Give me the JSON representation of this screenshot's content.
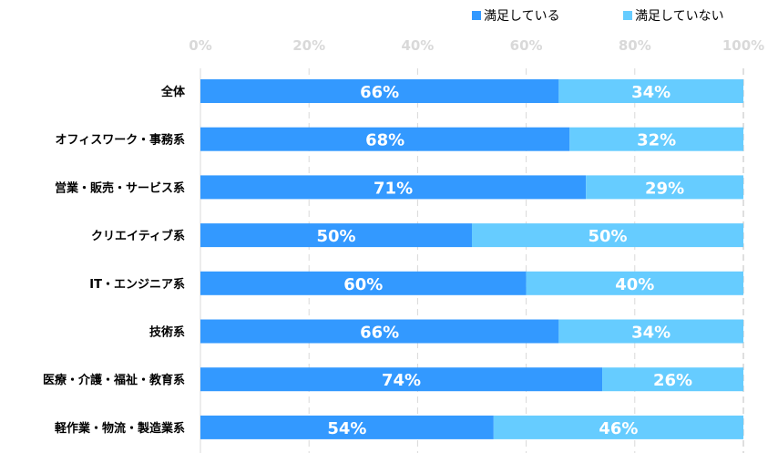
{
  "chart_data": {
    "type": "bar",
    "orientation": "horizontal",
    "stacked": true,
    "categories": [
      "全体",
      "オフィスワーク・事務系",
      "営業・販売・サービス系",
      "クリエイティブ系",
      "IT・エンジニア系",
      "技術系",
      "医療・介護・福祉・教育系",
      "軽作業・物流・製造業系"
    ],
    "series": [
      {
        "name": "満足している",
        "color": "#3399FF",
        "values": [
          66,
          68,
          71,
          50,
          60,
          66,
          74,
          54
        ]
      },
      {
        "name": "満足していない",
        "color": "#66CCFF",
        "values": [
          34,
          32,
          29,
          50,
          40,
          34,
          26,
          46
        ]
      }
    ],
    "xlim": [
      0,
      100
    ],
    "xticks": [
      "0%",
      "20%",
      "40%",
      "60%",
      "80%",
      "100%"
    ],
    "grid": true,
    "legend_position": "top-right",
    "value_suffix": "%"
  }
}
